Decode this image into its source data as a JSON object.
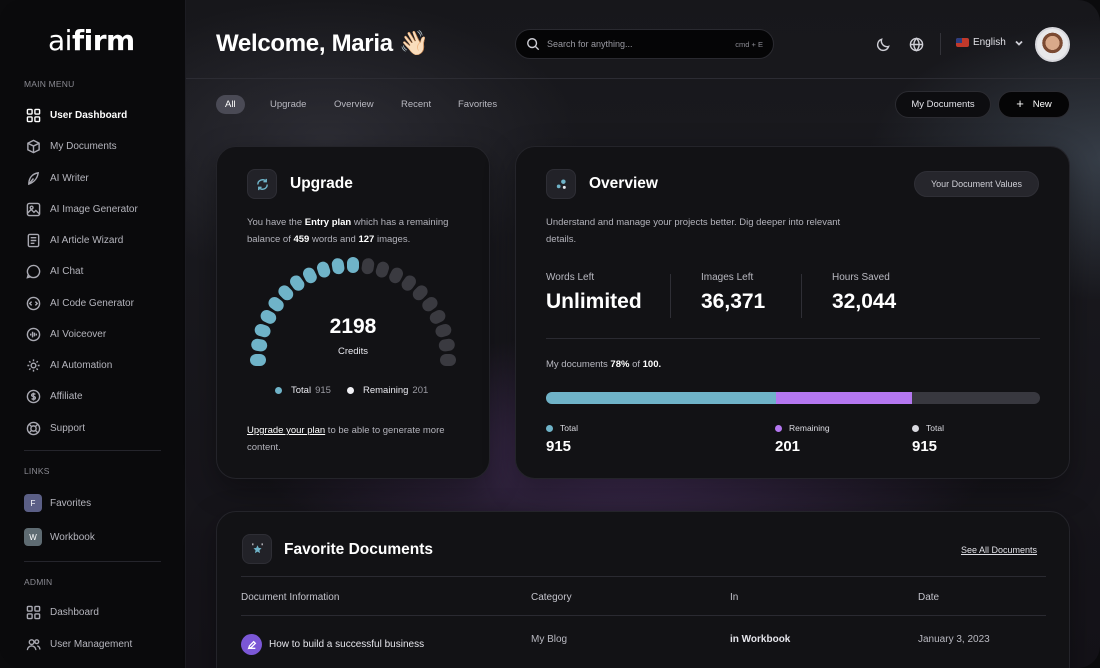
{
  "app": {
    "logo_light": "ai",
    "logo_bold": "firm"
  },
  "sidebar": {
    "main_menu_label": "MAIN MENU",
    "items": [
      {
        "label": "User Dashboard",
        "icon": "dashboard-icon"
      },
      {
        "label": "My Documents",
        "icon": "box-icon"
      },
      {
        "label": "AI Writer",
        "icon": "writer-icon"
      },
      {
        "label": "AI Image Generator",
        "icon": "image-icon"
      },
      {
        "label": "AI Article Wizard",
        "icon": "article-icon"
      },
      {
        "label": "AI Chat",
        "icon": "chat-icon"
      },
      {
        "label": "AI Code Generator",
        "icon": "code-icon"
      },
      {
        "label": "AI Voiceover",
        "icon": "voice-icon"
      },
      {
        "label": "AI Automation",
        "icon": "automation-icon"
      },
      {
        "label": "Affiliate",
        "icon": "dollar-icon"
      },
      {
        "label": "Support",
        "icon": "support-icon"
      }
    ],
    "links_label": "LINKS",
    "links": [
      {
        "badge": "F",
        "label": "Favorites",
        "color": "#5b5f86"
      },
      {
        "badge": "W",
        "label": "Workbook",
        "color": "#5e6b72"
      }
    ],
    "admin_label": "ADMIN",
    "admin_items": [
      {
        "label": "Dashboard",
        "icon": "dashboard-icon"
      },
      {
        "label": "User Management",
        "icon": "users-icon"
      }
    ]
  },
  "header": {
    "welcome": "Welcome, Maria 👋🏻",
    "search_placeholder": "Search for anything...",
    "search_shortcut": "cmd + E",
    "language": "English"
  },
  "filters": [
    "All",
    "Upgrade",
    "Overview",
    "Recent",
    "Favorites"
  ],
  "actions": {
    "my_documents": "My Documents",
    "new": "New"
  },
  "upgrade": {
    "title": "Upgrade",
    "text_1": "You have the ",
    "plan": "Entry plan",
    "text_2": " which has a remaining",
    "text_3": "balance of ",
    "words": "459",
    "text_4": " words and ",
    "images": "127",
    "text_5": " images.",
    "credits_value": "2198",
    "credits_label": "Credits",
    "gauge_fraction": 0.5,
    "legend_total_label": "Total",
    "legend_total_value": "915",
    "legend_remaining_label": "Remaining",
    "legend_remaining_value": "201",
    "note_link": "Upgrade your plan",
    "note_rest": " to be able to generate more",
    "note_line2": "content."
  },
  "overview": {
    "title": "Overview",
    "pill": "Your Document Values",
    "desc_line1": "Understand and manage your projects better. Dig deeper into relevant",
    "desc_line2": "details.",
    "stats": [
      {
        "label": "Words Left",
        "value": "Unlimited"
      },
      {
        "label": "Images Left",
        "value": "36,371"
      },
      {
        "label": "Hours Saved",
        "value": "32,044"
      }
    ],
    "mydocs_prefix": "My documents ",
    "mydocs_pct": "78%",
    "mydocs_mid": " of ",
    "mydocs_total": "100.",
    "bar_segments": [
      {
        "fraction": 0.465,
        "color": "#6fb3c8"
      },
      {
        "fraction": 0.275,
        "color": "#b477f0"
      }
    ],
    "breakdown": [
      {
        "label": "Total",
        "value": "915",
        "color": "#6fb3c8"
      },
      {
        "label": "Remaining",
        "value": "201",
        "color": "#b477f0"
      },
      {
        "label": "Total",
        "value": "915",
        "color": "#d8d8de"
      }
    ]
  },
  "favorites": {
    "title": "Favorite Documents",
    "see_all": "See All Documents",
    "columns": [
      "Document Information",
      "Category",
      "In",
      "Date"
    ],
    "rows": [
      {
        "name": "How to build a successful business",
        "category": "My Blog",
        "in": "in Workbook",
        "date": "January 3, 2023"
      }
    ]
  },
  "colors": {
    "teal": "#6fb3c8",
    "purple": "#b477f0",
    "gauge_inactive": "#3a3a40"
  }
}
